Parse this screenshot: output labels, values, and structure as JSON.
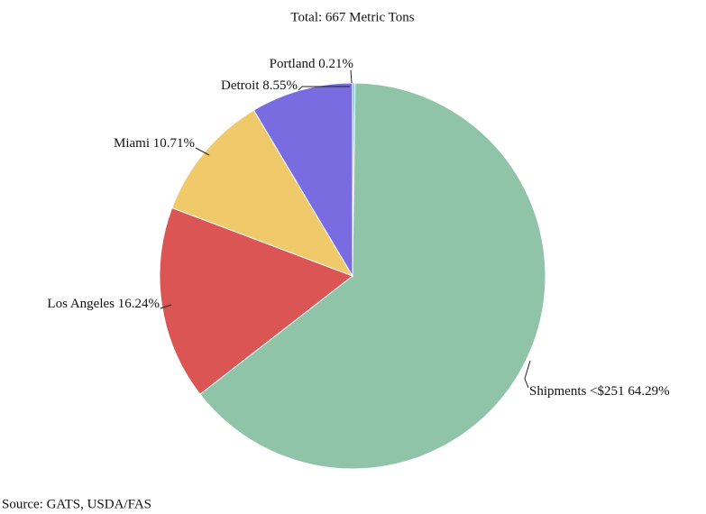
{
  "chart_data": {
    "type": "pie",
    "title": "Total: 667 Metric Tons",
    "categories": [
      "Portland",
      "Shipments <$251",
      "Los Angeles",
      "Miami",
      "Detroit"
    ],
    "values": [
      0.21,
      64.29,
      16.24,
      10.71,
      8.55
    ],
    "value_labels": [
      "0.21%",
      "64.29%",
      "16.24%",
      "10.71%",
      "8.55%"
    ],
    "colors": [
      "#7ec8e3",
      "#8fc4a8",
      "#dc5555",
      "#f0c96b",
      "#786ce0"
    ],
    "source": "Source: GATS, USDA/FAS"
  }
}
